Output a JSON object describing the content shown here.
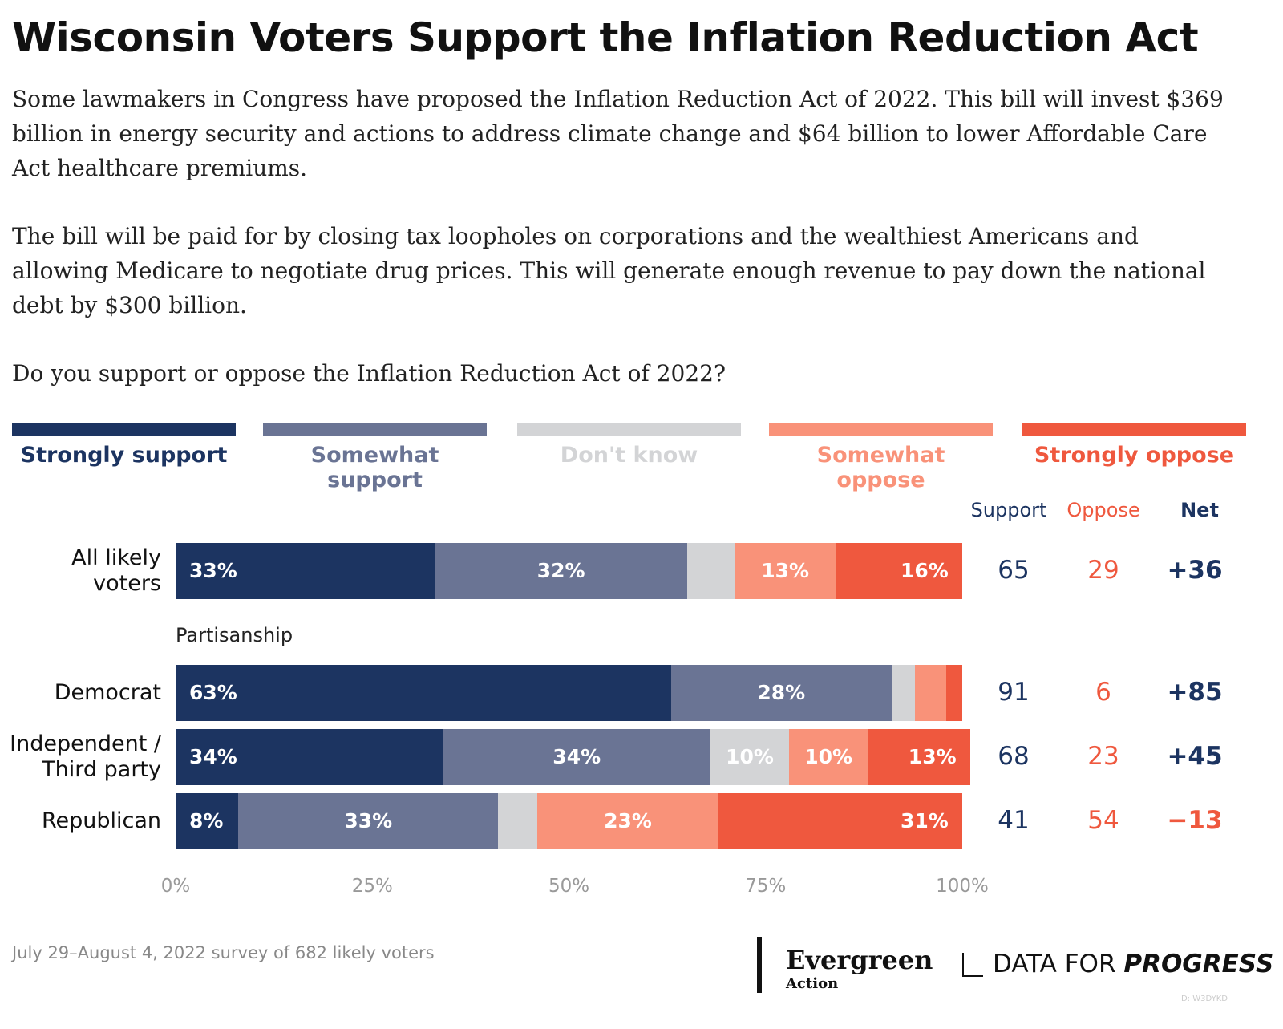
{
  "chart_data": {
    "type": "stacked-bar",
    "title": "Wisconsin Voters Support the Inflation Reduction Act",
    "subtitle": [
      "Some lawmakers in Congress have proposed the Inflation Reduction Act of 2022. This bill will invest $369 billion in energy security and actions to address climate change and $64 billion to lower Affordable Care Act healthcare premiums.",
      "The bill will be paid for by closing tax loopholes on corporations and the wealthiest Americans and allowing Medicare to negotiate drug prices. This will generate enough revenue to pay down the national debt by $300 billion.",
      "Do you support or oppose the Inflation Reduction Act of 2022?"
    ],
    "categories": [
      "All likely voters",
      "Democrat",
      "Independent / Third party",
      "Republican"
    ],
    "group_label": "Partisanship",
    "series": [
      {
        "name": "Strongly support",
        "color": "#1c3461",
        "values": [
          33,
          63,
          34,
          8
        ],
        "value_labels": [
          "33%",
          "63%",
          "34%",
          "8%"
        ]
      },
      {
        "name": "Somewhat support",
        "color": "#6a7494",
        "values": [
          32,
          28,
          34,
          33
        ],
        "value_labels": [
          "32%",
          "28%",
          "34%",
          "33%"
        ]
      },
      {
        "name": "Don't know",
        "color": "#d3d4d6",
        "values": [
          6,
          3,
          10,
          5
        ],
        "value_labels": [
          null,
          null,
          "10%",
          null
        ]
      },
      {
        "name": "Somewhat oppose",
        "color": "#f99279",
        "values": [
          13,
          4,
          10,
          23
        ],
        "value_labels": [
          "13%",
          null,
          "10%",
          "23%"
        ]
      },
      {
        "name": "Strongly oppose",
        "color": "#ef583e",
        "values": [
          16,
          2,
          13,
          31
        ],
        "value_labels": [
          "16%",
          null,
          "13%",
          "31%"
        ]
      }
    ],
    "xlim": [
      0,
      100
    ],
    "xticks": [
      {
        "value": 0,
        "label": "0%"
      },
      {
        "value": 25,
        "label": "25%"
      },
      {
        "value": 50,
        "label": "50%"
      },
      {
        "value": 75,
        "label": "75%"
      },
      {
        "value": 100,
        "label": "100%"
      }
    ],
    "summary": {
      "headers": [
        "Support",
        "Oppose",
        "Net"
      ],
      "support": [
        65,
        91,
        68,
        41
      ],
      "oppose": [
        29,
        6,
        23,
        54
      ],
      "net": [
        "+36",
        "+85",
        "+45",
        "−13"
      ]
    },
    "note": "July 29–August 4, 2022 survey of 682 likely voters",
    "logos": [
      "Evergreen",
      "Action",
      "DATA FOR",
      "PROGRESS"
    ],
    "id": "ID: W3DYKD"
  }
}
